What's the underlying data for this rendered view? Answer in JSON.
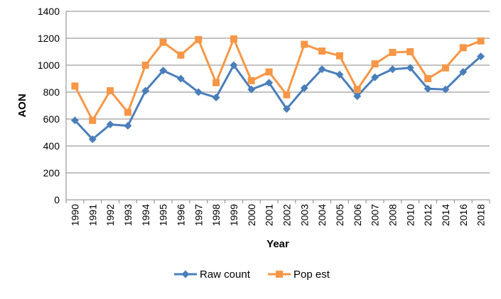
{
  "chart_data": {
    "type": "line",
    "title": "",
    "xlabel": "Year",
    "ylabel": "AON",
    "ylim": [
      0,
      1400
    ],
    "yticks": [
      0,
      200,
      400,
      600,
      800,
      1000,
      1200,
      1400
    ],
    "grid": "horizontal",
    "legend_position": "bottom",
    "categories": [
      "1990",
      "1991",
      "1992",
      "1993",
      "1994",
      "1995",
      "1996",
      "1997",
      "1998",
      "1999",
      "2000",
      "2001",
      "2002",
      "2003",
      "2004",
      "2005",
      "2006",
      "2007",
      "2008",
      "2010",
      "2012",
      "2014",
      "2016",
      "2018"
    ],
    "series": [
      {
        "name": "Raw count",
        "color": "#4a7ebb",
        "marker": "diamond",
        "values": [
          590,
          450,
          560,
          550,
          810,
          960,
          900,
          800,
          760,
          1000,
          820,
          870,
          675,
          830,
          970,
          930,
          770,
          910,
          970,
          980,
          825,
          820,
          950,
          1065
        ]
      },
      {
        "name": "Pop est",
        "color": "#f79646",
        "marker": "square",
        "values": [
          845,
          590,
          810,
          650,
          1000,
          1170,
          1075,
          1190,
          870,
          1195,
          885,
          950,
          780,
          1155,
          1105,
          1070,
          820,
          1010,
          1095,
          1100,
          900,
          980,
          1130,
          1180
        ]
      }
    ]
  }
}
